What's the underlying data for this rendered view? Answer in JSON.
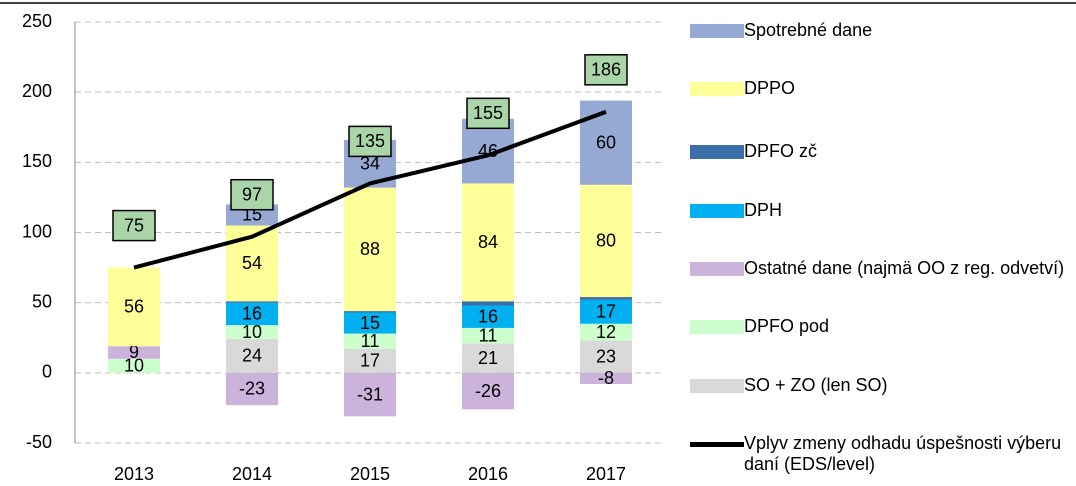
{
  "chart_data": {
    "type": "bar",
    "stacked": true,
    "categories": [
      "2013",
      "2014",
      "2015",
      "2016",
      "2017"
    ],
    "ylim": [
      -50,
      250
    ],
    "yticks": [
      -50,
      0,
      50,
      100,
      150,
      200,
      250
    ],
    "grid": true,
    "series": [
      {
        "name": "Spotrebné dane",
        "color": "#95a9d3",
        "values": [
          null,
          15,
          34,
          46,
          60
        ]
      },
      {
        "name": "DPPO",
        "color": "#ffff99",
        "values": [
          56,
          54,
          88,
          84,
          80
        ]
      },
      {
        "name": "DPFO zč",
        "color": "#3c6ea8",
        "values": [
          null,
          1,
          1,
          3,
          2
        ],
        "labels": false
      },
      {
        "name": "DPH",
        "color": "#00b0f0",
        "values": [
          null,
          16,
          15,
          16,
          17
        ]
      },
      {
        "name": "Ostatné dane (najmä OO z reg. odvetví)",
        "color": "#ccb3dc",
        "values": [
          9,
          -23,
          -31,
          -26,
          -8
        ]
      },
      {
        "name": "DPFO pod",
        "color": "#ccffcc",
        "values": [
          10,
          10,
          11,
          11,
          12
        ]
      },
      {
        "name": "SO + ZO (len SO)",
        "color": "#d9d9d9",
        "values": [
          null,
          24,
          17,
          21,
          23
        ]
      },
      {
        "name": "Vplyv zmeny odhadu úspešnosti výberu daní (EDS/level)",
        "type": "line",
        "color": "#000000",
        "label_box_color": "#a9d5a9",
        "values": [
          75,
          97,
          135,
          155,
          186
        ]
      }
    ]
  }
}
